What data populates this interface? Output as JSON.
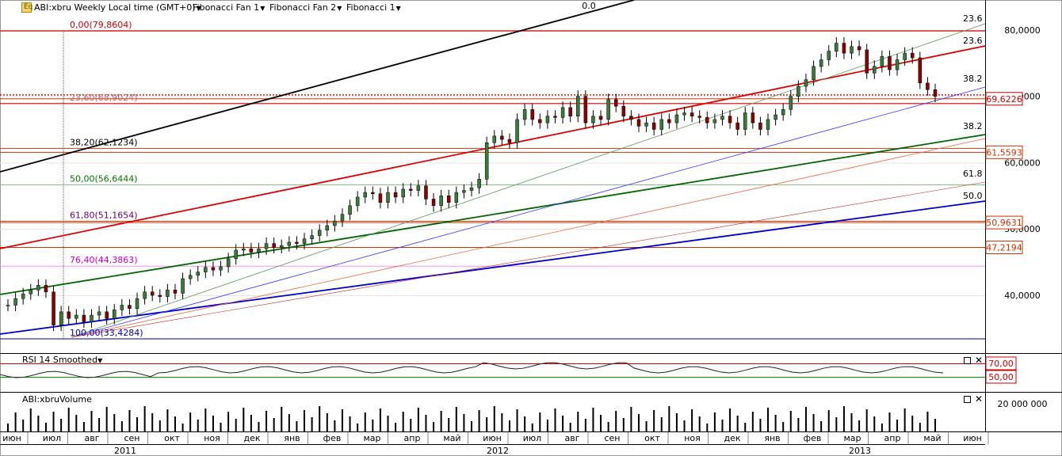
{
  "header": {
    "symbol_title": "ABI:xbru Weekly Local time (GMT+0)",
    "tabs": [
      "Fibonacci Fan 1",
      "Fibonacci Fan 2",
      "Fibonacci 1"
    ]
  },
  "rsi_panel": {
    "title": "RSI 14 Smoothed",
    "levels": [
      "70,00",
      "50,00"
    ]
  },
  "volume_panel": {
    "title": "ABI:xbruVolume",
    "axis_label": "20 000 000"
  },
  "price_axis": {
    "labels": [
      "80,0000",
      "70,0000",
      "60,0000",
      "50,0000",
      "40,0000"
    ]
  },
  "price_badges": [
    {
      "text": "69,6226",
      "color": "#cc0000"
    },
    {
      "text": "61,5593",
      "color": "#cc3300"
    },
    {
      "text": "50,9631",
      "color": "#cc3300"
    },
    {
      "text": "47,2194",
      "color": "#cc3300"
    }
  ],
  "fib_retracement": [
    {
      "text": "0,00(79,8604)",
      "color": "#cc0000"
    },
    {
      "text": "23,60(68,9024)",
      "color": "#cc6666"
    },
    {
      "text": "38,20(62,1234)",
      "color": "#000000"
    },
    {
      "text": "50,00(56,6444)",
      "color": "#007700"
    },
    {
      "text": "61,80(51,1654)",
      "color": "#660066"
    },
    {
      "text": "76,40(44,3863)",
      "color": "#cc00cc"
    },
    {
      "text": "100,00(33,4284)",
      "color": "#0000aa"
    }
  ],
  "fan_labels": [
    "0.0",
    "23.6",
    "23.6",
    "38.2",
    "38.2",
    "61.8",
    "50.0"
  ],
  "time_axis": {
    "months": [
      "июн",
      "июл",
      "авг",
      "сен",
      "окт",
      "ноя",
      "дек",
      "янв",
      "фев",
      "мар",
      "апр",
      "май",
      "июн",
      "июл",
      "авг",
      "сен",
      "окт",
      "ноя",
      "дек",
      "янв",
      "фев",
      "мар",
      "апр",
      "май",
      "июн"
    ],
    "years": [
      "2011",
      "2012",
      "2013"
    ]
  },
  "chart_data": {
    "type": "candlestick",
    "title": "ABI:xbru Weekly",
    "ylim": [
      31,
      85
    ],
    "close_series_approx": [
      38.5,
      39.5,
      40.2,
      40.8,
      41.5,
      40.5,
      35.5,
      37.5,
      36.5,
      37.0,
      36.0,
      37.0,
      37.5,
      36.5,
      37.8,
      38.5,
      38.0,
      39.5,
      40.5,
      40.0,
      39.8,
      40.8,
      40.3,
      42.5,
      43.0,
      43.5,
      44.2,
      43.8,
      44.3,
      45.5,
      46.8,
      47.0,
      46.5,
      47.0,
      47.8,
      47.2,
      47.5,
      48.0,
      47.8,
      48.5,
      49.0,
      49.8,
      50.5,
      51.2,
      52.2,
      53.5,
      54.8,
      55.5,
      55.3,
      54.0,
      55.5,
      54.8,
      56.0,
      55.8,
      56.5,
      54.5,
      53.5,
      55.0,
      54.0,
      55.5,
      55.8,
      56.2,
      57.5,
      63.0,
      64.0,
      63.5,
      63.0,
      66.5,
      68.0,
      66.5,
      66.0,
      67.0,
      66.8,
      68.3,
      67.0,
      70.0,
      66.0,
      67.0,
      66.5,
      69.5,
      68.5,
      67.0,
      66.5,
      65.5,
      66.0,
      65.0,
      66.5,
      66.0,
      67.2,
      67.5,
      67.0,
      66.8,
      66.0,
      66.5,
      67.0,
      66.0,
      65.0,
      67.5,
      66.0,
      65.0,
      66.5,
      67.2,
      68.0,
      70.0,
      71.5,
      72.5,
      74.5,
      75.5,
      76.8,
      78.0,
      76.5,
      77.5,
      77.0,
      73.5,
      74.5,
      76.0,
      74.0,
      75.5,
      76.5,
      75.8,
      72.0,
      71.0,
      70.0
    ],
    "rsi_levels": [
      70,
      50
    ],
    "volume_ylabel": "20 000 000",
    "fib_retracement_levels": [
      79.8604,
      68.9024,
      62.1234,
      56.6444,
      51.1654,
      44.3863,
      33.4284
    ]
  }
}
